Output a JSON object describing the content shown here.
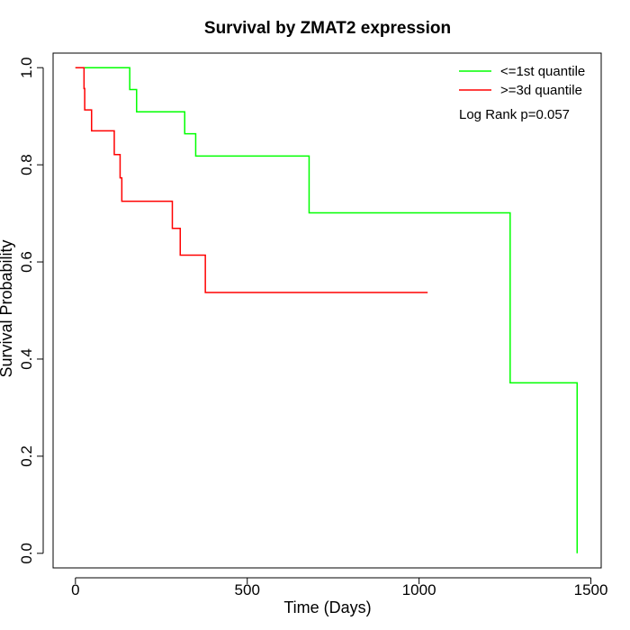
{
  "chart_data": {
    "type": "line",
    "step": true,
    "title": "Survival by ZMAT2 expression",
    "xlabel": "Time (Days)",
    "ylabel": "Survival Probability",
    "xlim": [
      -65,
      1530
    ],
    "ylim": [
      -0.03,
      1.03
    ],
    "xticks": [
      0,
      500,
      1000,
      1500
    ],
    "yticks": [
      0.0,
      0.2,
      0.4,
      0.6,
      0.8,
      1.0
    ],
    "xtick_labels": [
      "0",
      "500",
      "1000",
      "1500"
    ],
    "ytick_labels": [
      "0.0",
      "0.2",
      "0.4",
      "0.6",
      "0.8",
      "1.0"
    ],
    "grid": false,
    "legend_position": "top-right",
    "annotation": "Log Rank p=0.057",
    "series": [
      {
        "name": "<=1st quantile",
        "color": "#00ff00",
        "points": [
          [
            0,
            1.0
          ],
          [
            158,
            1.0
          ],
          [
            158,
            0.955
          ],
          [
            178,
            0.955
          ],
          [
            178,
            0.909
          ],
          [
            318,
            0.909
          ],
          [
            318,
            0.864
          ],
          [
            350,
            0.864
          ],
          [
            350,
            0.818
          ],
          [
            680,
            0.818
          ],
          [
            680,
            0.701
          ],
          [
            1265,
            0.701
          ],
          [
            1265,
            0.351
          ],
          [
            1460,
            0.351
          ],
          [
            1460,
            0.0
          ]
        ]
      },
      {
        "name": ">=3d quantile",
        "color": "#ff0000",
        "points": [
          [
            0,
            1.0
          ],
          [
            25,
            1.0
          ],
          [
            25,
            0.957
          ],
          [
            27,
            0.957
          ],
          [
            27,
            0.913
          ],
          [
            47,
            0.913
          ],
          [
            47,
            0.87
          ],
          [
            113,
            0.87
          ],
          [
            113,
            0.821
          ],
          [
            130,
            0.821
          ],
          [
            130,
            0.773
          ],
          [
            135,
            0.773
          ],
          [
            135,
            0.725
          ],
          [
            282,
            0.725
          ],
          [
            282,
            0.669
          ],
          [
            305,
            0.669
          ],
          [
            305,
            0.614
          ],
          [
            378,
            0.614
          ],
          [
            378,
            0.537
          ],
          [
            1025,
            0.537
          ]
        ]
      }
    ]
  }
}
